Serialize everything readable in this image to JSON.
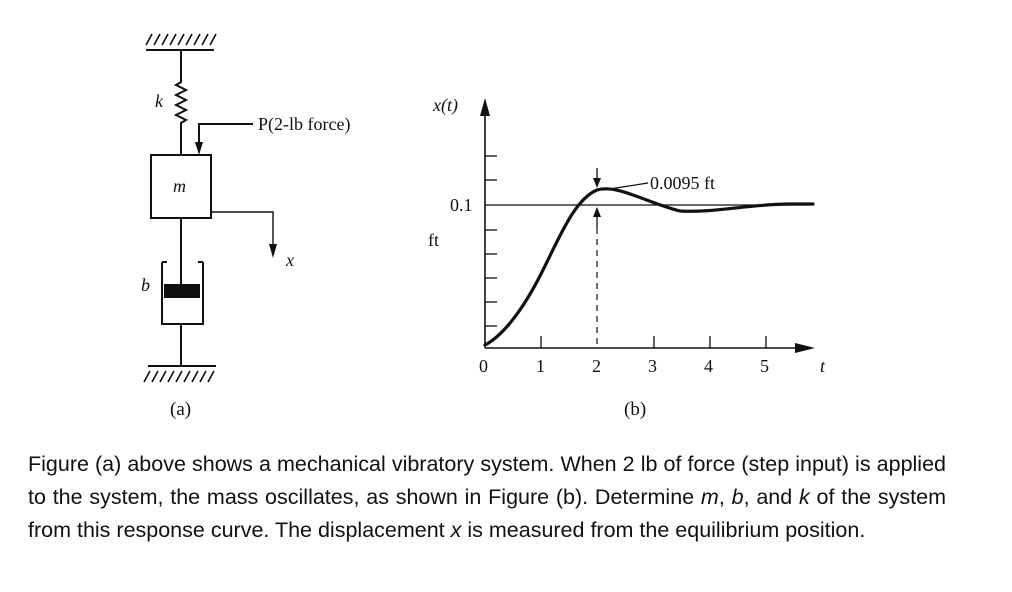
{
  "diagram_a": {
    "k_label": "k",
    "m_label": "m",
    "b_label": "b",
    "force_label": "P(2-lb force)",
    "x_label": "x",
    "caption": "(a)"
  },
  "diagram_b": {
    "y_axis_label": "x(t)",
    "x_axis_label": "t",
    "y_tick": "0.1",
    "y_unit": "ft",
    "overshoot_label": "0.0095 ft",
    "caption": "(b)"
  },
  "chart_data": {
    "type": "line",
    "xlabel": "t",
    "ylabel": "x(t)",
    "x_ticks": [
      "0",
      "1",
      "2",
      "3",
      "4",
      "5"
    ],
    "y_tick_value": 0.1,
    "y_unit": "ft",
    "peak_time": 2,
    "overshoot": 0.0095,
    "steady_state": 0.1,
    "xlim": [
      0,
      5.9
    ],
    "ylim": [
      0,
      0.18
    ]
  },
  "problem": {
    "p1": "Figure (a) above shows a mechanical vibratory system. When 2 lb of force (step input) is applied to the system, the mass oscillates, as shown in Figure (b). Determine ",
    "m": "m",
    "sep1": ", ",
    "b": "b",
    "sep2": ", and ",
    "k": "k",
    "p2": " of the system from this response curve. The displacement ",
    "x": "x",
    "p3": " is measured from the equilibrium position."
  }
}
